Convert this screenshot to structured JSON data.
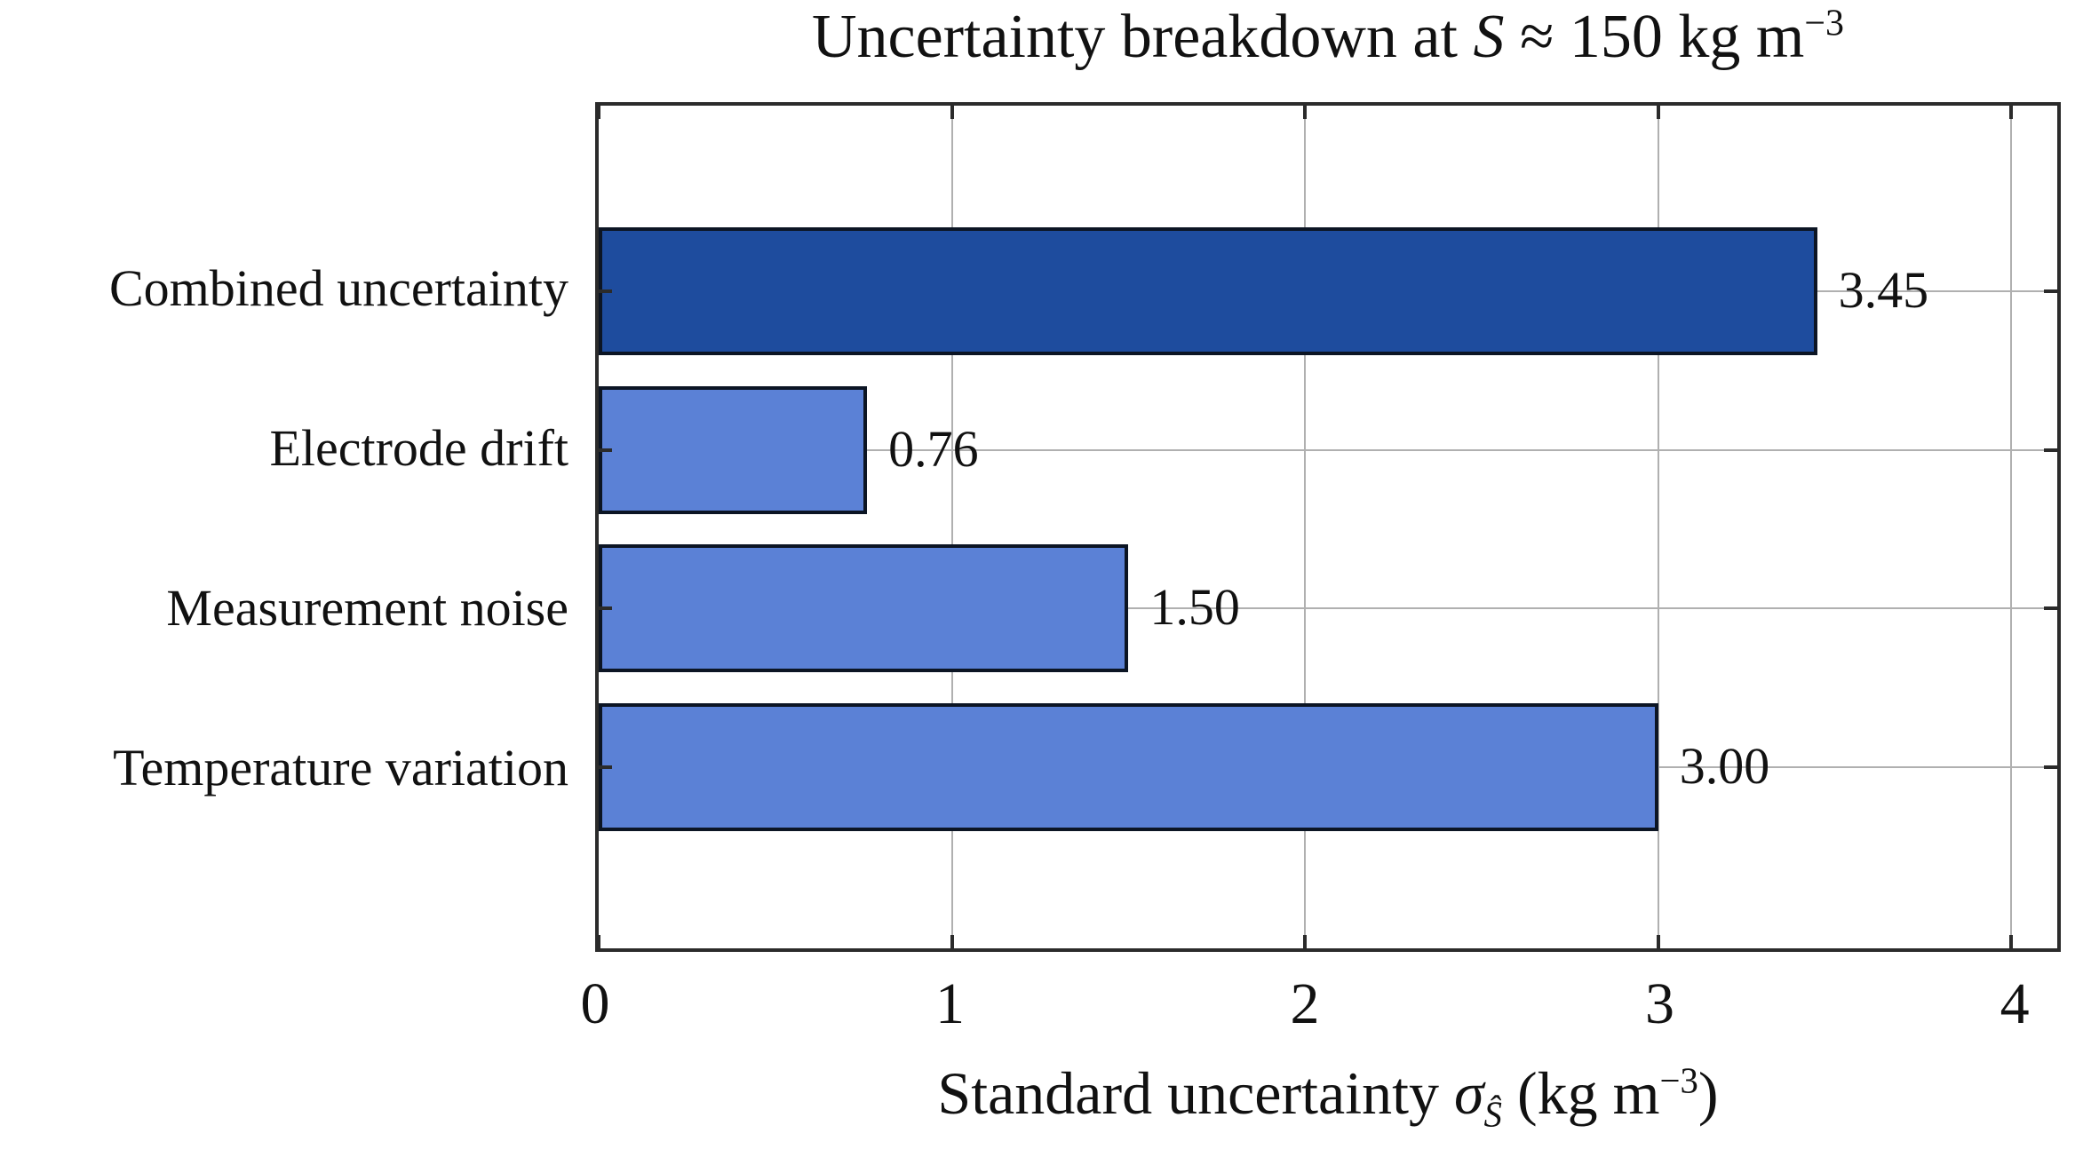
{
  "chart_data": {
    "type": "bar",
    "orientation": "horizontal",
    "title": "Uncertainty breakdown at S ≈ 150 kg m⁻³",
    "title_segments": [
      {
        "text": "Uncertainty breakdown at ",
        "style": "normal"
      },
      {
        "text": "S",
        "style": "italic"
      },
      {
        "text": " ≈ 150 kg m",
        "style": "normal"
      },
      {
        "text": "−3",
        "style": "sup"
      }
    ],
    "categories": [
      "Combined uncertainty",
      "Electrode drift",
      "Measurement noise",
      "Temperature variation"
    ],
    "values": [
      3.45,
      0.76,
      1.5,
      3.0
    ],
    "value_labels": [
      "3.45",
      "0.76",
      "1.50",
      "3.00"
    ],
    "bar_colors": [
      "#1e4c9e",
      "#5b81d6",
      "#5b81d6",
      "#5b81d6"
    ],
    "bar_edge_color": "#0c1524",
    "xlabel": "Standard uncertainty σŜ (kg m⁻³)",
    "xlabel_segments": [
      {
        "text": "Standard uncertainty ",
        "style": "normal"
      },
      {
        "text": "σ",
        "style": "italic"
      },
      {
        "text": "Ŝ",
        "style": "sub-italic"
      },
      {
        "text": " (kg m",
        "style": "normal"
      },
      {
        "text": "−3",
        "style": "sup"
      },
      {
        "text": ")",
        "style": "normal"
      }
    ],
    "xlim": [
      0,
      4.13
    ],
    "xtick_labels": [
      "0",
      "1",
      "2",
      "3",
      "4"
    ],
    "xtick_values": [
      0,
      1,
      2,
      3,
      4
    ],
    "grid": true,
    "grid_color": "#b0b0b0",
    "axis_color": "#2b2b2b",
    "background_color": "#ffffff",
    "text_color": "#111111",
    "legend": null
  }
}
